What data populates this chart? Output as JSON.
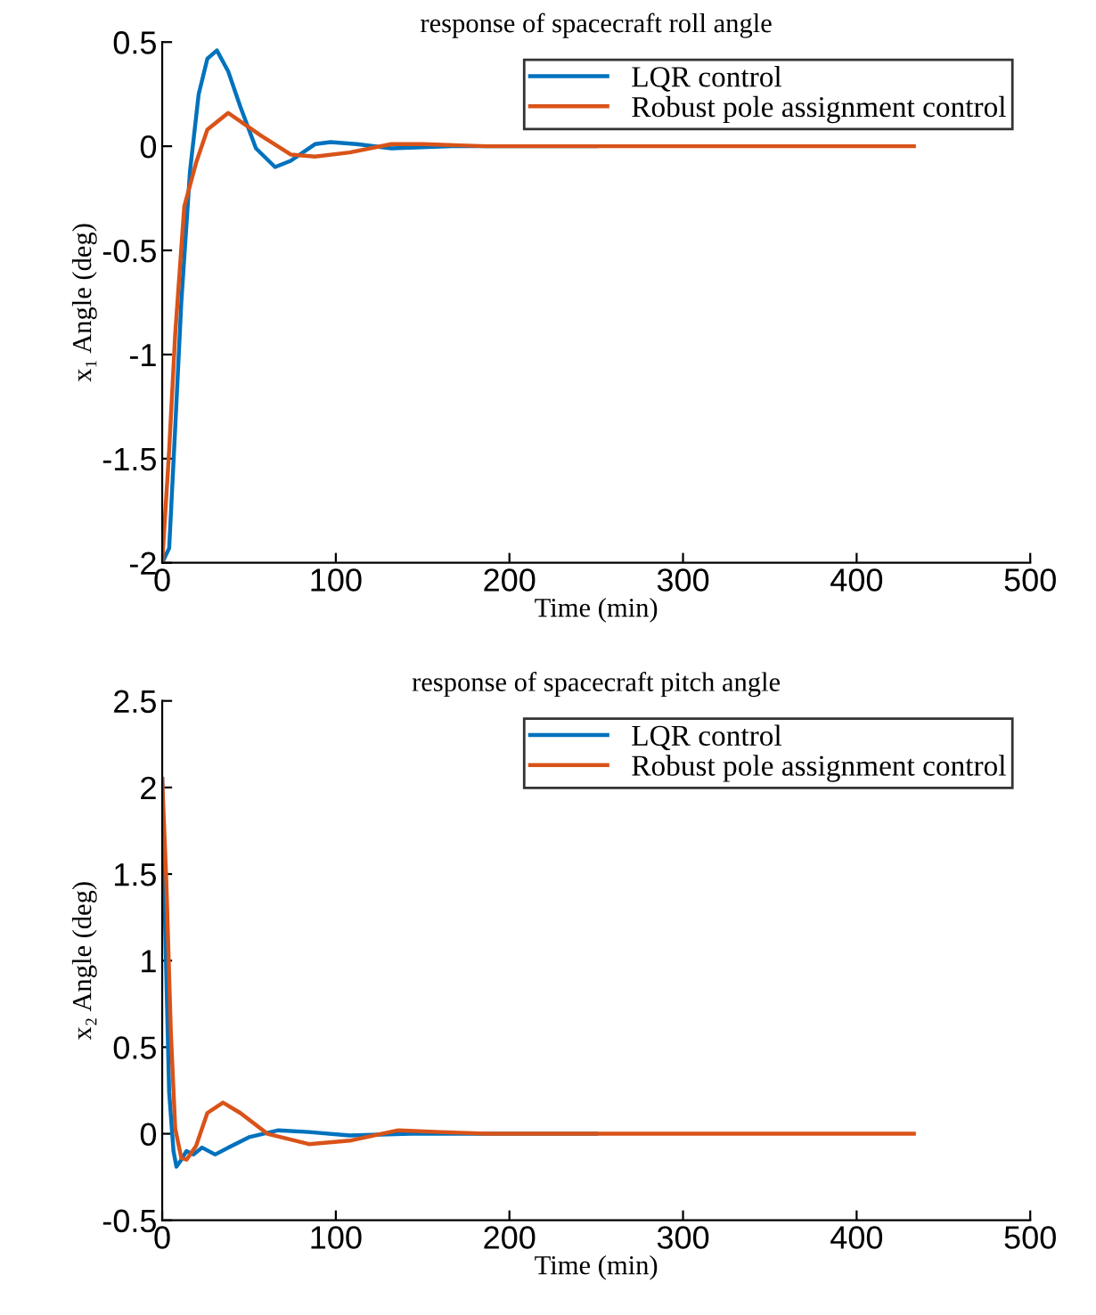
{
  "chart_data": [
    {
      "type": "line",
      "title": "response of spacecraft roll angle",
      "xlabel": "Time (min)",
      "ylabel": "x₁ Angle (deg)",
      "xlim": [
        0,
        500
      ],
      "xticks": [
        0,
        100,
        200,
        300,
        400,
        500
      ],
      "ylim": [
        -2,
        0.5
      ],
      "yticks": [
        -2,
        -1.5,
        -1,
        -0.5,
        0,
        0.5
      ],
      "legend": "top right",
      "grid": false,
      "line_style": "solid",
      "marker": "none",
      "series": [
        {
          "name": "LQR control",
          "color": "#0072bd",
          "x": [
            0,
            4,
            7.5,
            11,
            16,
            21,
            26,
            31.5,
            38,
            45,
            54,
            65,
            74,
            88,
            97,
            112,
            132,
            167,
            250
          ],
          "values": [
            -2,
            -1.93,
            -1.35,
            -0.75,
            -0.12,
            0.25,
            0.42,
            0.46,
            0.36,
            0.19,
            -0.01,
            -0.1,
            -0.07,
            0.01,
            0.02,
            0.01,
            -0.01,
            0,
            0
          ]
        },
        {
          "name": "Robust pole assignment control",
          "color": "#d95319",
          "x": [
            0,
            4,
            7.5,
            12.7,
            19.5,
            26,
            38,
            57,
            74,
            88,
            108,
            132,
            150,
            187,
            250,
            350,
            433
          ],
          "values": [
            -2,
            -1.46,
            -0.9,
            -0.29,
            -0.08,
            0.08,
            0.16,
            0.05,
            -0.04,
            -0.05,
            -0.03,
            0.01,
            0.01,
            0,
            0,
            0,
            0
          ]
        }
      ]
    },
    {
      "type": "line",
      "title": "response of spacecraft pitch angle",
      "xlabel": "Time (min)",
      "ylabel": "x₂ Angle (deg)",
      "xlim": [
        0,
        500
      ],
      "xticks": [
        0,
        100,
        200,
        300,
        400,
        500
      ],
      "ylim": [
        -0.5,
        2.5
      ],
      "yticks": [
        -0.5,
        0,
        0.5,
        1,
        1.5,
        2,
        2.5
      ],
      "legend": "top right",
      "grid": false,
      "line_style": "solid",
      "marker": "none",
      "series": [
        {
          "name": "LQR control",
          "color": "#0072bd",
          "x": [
            0,
            1.7,
            4,
            6.5,
            8.2,
            11,
            14,
            18,
            23,
            30.5,
            40,
            50,
            67,
            84.5,
            108,
            143,
            250
          ],
          "values": [
            2.05,
            1.2,
            0.24,
            -0.1,
            -0.19,
            -0.15,
            -0.1,
            -0.12,
            -0.08,
            -0.12,
            -0.07,
            -0.02,
            0.02,
            0.01,
            -0.01,
            0,
            0
          ]
        },
        {
          "name": "Robust pole assignment control",
          "color": "#d95319",
          "x": [
            0,
            2.4,
            5,
            7.5,
            11,
            14,
            19.5,
            26,
            35,
            45,
            60.6,
            84.5,
            108,
            136,
            160,
            187,
            250,
            350,
            433
          ],
          "values": [
            2.05,
            1.45,
            0.58,
            0.03,
            -0.14,
            -0.15,
            -0.07,
            0.12,
            0.18,
            0.12,
            0,
            -0.06,
            -0.04,
            0.02,
            0.01,
            0,
            0,
            0,
            0
          ]
        }
      ]
    }
  ]
}
